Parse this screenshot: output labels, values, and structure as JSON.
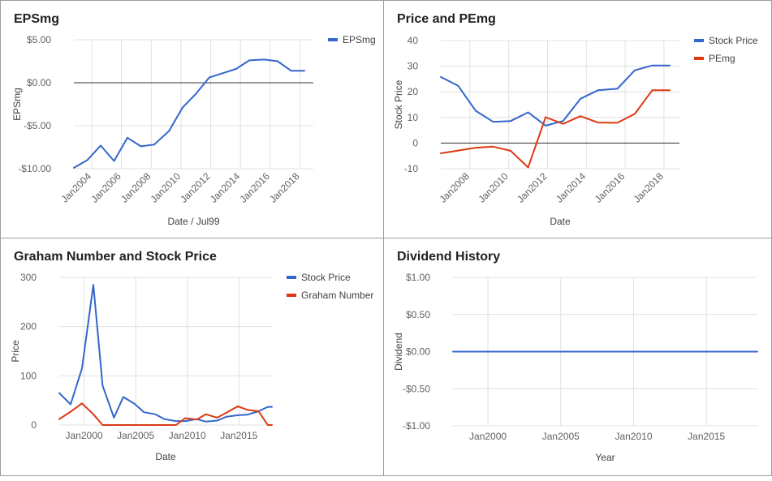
{
  "panels": [
    {
      "title": "EPSmg",
      "xlabel": "Date / Jul99",
      "ylabel": "EPSmg",
      "chart_data": {
        "type": "line",
        "title": "EPSmg",
        "xlabel": "Date / Jul99",
        "ylabel": "EPSmg",
        "ylim": [
          -10,
          5
        ],
        "xlim": [
          2002.8,
          2018.9
        ],
        "yticks": [
          5,
          0,
          -5,
          -10
        ],
        "ytick_labels": [
          "$5.00",
          "$0.00",
          "-$5.00",
          "-$10.00"
        ],
        "xticks": [
          2004,
          2006,
          2008,
          2010,
          2012,
          2014,
          2016,
          2018
        ],
        "xtick_labels": [
          "Jan2004",
          "Jan2006",
          "Jan2008",
          "Jan2010",
          "Jan2012",
          "Jan2014",
          "Jan2016",
          "Jan2018"
        ],
        "grid": true,
        "legend": "top-right",
        "baseline": 0,
        "series": [
          {
            "name": "EPSmg",
            "color": "#3366cc",
            "x": [
              2002.8,
              2003.7,
              2004.6,
              2005.5,
              2006.4,
              2007.3,
              2008.2,
              2009.2,
              2010.1,
              2011.0,
              2011.9,
              2012.8,
              2013.7,
              2014.6,
              2015.6,
              2016.5,
              2017.4,
              2018.3
            ],
            "y": [
              -9.9,
              -9.0,
              -7.3,
              -9.1,
              -6.4,
              -7.4,
              -7.2,
              -5.6,
              -2.9,
              -1.3,
              0.6,
              1.1,
              1.6,
              2.6,
              2.7,
              2.5,
              1.4,
              1.4
            ]
          }
        ]
      }
    },
    {
      "title": "Price and PEmg",
      "xlabel": "Date",
      "ylabel": "Stock Price",
      "chart_data": {
        "type": "line",
        "title": "Price and PEmg",
        "xlabel": "Date",
        "ylabel": "Stock Price",
        "ylim": [
          -10,
          40
        ],
        "xlim": [
          2006.5,
          2018.8
        ],
        "yticks": [
          40,
          30,
          20,
          10,
          0,
          -10
        ],
        "ytick_labels": [
          "40",
          "30",
          "20",
          "10",
          "0",
          "-10"
        ],
        "xticks": [
          2008,
          2010,
          2012,
          2014,
          2016,
          2018
        ],
        "xtick_labels": [
          "Jan2008",
          "Jan2010",
          "Jan2012",
          "Jan2014",
          "Jan2016",
          "Jan2018"
        ],
        "grid": true,
        "legend": "top-right",
        "baseline": 0,
        "series": [
          {
            "name": "Stock Price",
            "color": "#3366cc",
            "x": [
              2006.5,
              2007.4,
              2008.3,
              2009.2,
              2010.1,
              2011.0,
              2011.9,
              2012.8,
              2013.7,
              2014.6,
              2015.6,
              2016.5,
              2017.4,
              2018.3
            ],
            "y": [
              25.8,
              22.3,
              12.6,
              8.3,
              8.6,
              12.0,
              6.8,
              8.6,
              17.3,
              20.6,
              21.2,
              28.4,
              30.3,
              30.3
            ]
          },
          {
            "name": "PEmg",
            "color": "#dc3912",
            "x": [
              2006.5,
              2007.4,
              2008.3,
              2009.2,
              2010.1,
              2011.0,
              2011.9,
              2012.8,
              2013.7,
              2014.6,
              2015.6,
              2016.5,
              2017.4,
              2018.3
            ],
            "y": [
              -4.0,
              -2.9,
              -1.8,
              -1.4,
              -3.0,
              -9.5,
              10.1,
              7.5,
              10.5,
              8.0,
              7.9,
              11.4,
              20.6,
              20.6
            ]
          }
        ]
      }
    },
    {
      "title": "Graham Number and Stock Price",
      "xlabel": "Date",
      "ylabel": "Price",
      "chart_data": {
        "type": "line",
        "title": "Graham Number and Stock Price",
        "xlabel": "Date",
        "ylabel": "Price",
        "ylim": [
          0,
          300
        ],
        "xlim": [
          1997.6,
          2018.2
        ],
        "yticks": [
          300,
          200,
          100,
          0
        ],
        "ytick_labels": [
          "300",
          "200",
          "100",
          "0"
        ],
        "xticks": [
          2000,
          2005,
          2010,
          2015
        ],
        "xtick_labels": [
          "Jan2000",
          "Jan2005",
          "Jan2010",
          "Jan2015"
        ],
        "grid": true,
        "legend": "top-right",
        "series": [
          {
            "name": "Stock Price",
            "color": "#3366cc",
            "x": [
              1997.6,
              1998.7,
              1999.8,
              2000.9,
              2001.8,
              2002.9,
              2003.8,
              2004.9,
              2005.8,
              2006.9,
              2007.8,
              2008.9,
              2009.8,
              2010.9,
              2011.8,
              2012.9,
              2013.8,
              2014.9,
              2015.8,
              2016.9,
              2017.8,
              2018.2
            ],
            "y": [
              65,
              42,
              115,
              285,
              80,
              15,
              57,
              43,
              26,
              22,
              12,
              8,
              8,
              12,
              7,
              9,
              17,
              20,
              21,
              28,
              37,
              37
            ]
          },
          {
            "name": "Graham Number",
            "color": "#dc3912",
            "x": [
              1997.6,
              1998.7,
              1999.8,
              2000.9,
              2001.8,
              2002.9,
              2003.8,
              2004.9,
              2005.8,
              2006.9,
              2007.8,
              2008.9,
              2009.8,
              2010.9,
              2011.8,
              2012.9,
              2013.8,
              2014.9,
              2015.8,
              2016.9,
              2017.8,
              2018.2
            ],
            "y": [
              12,
              27,
              44,
              22,
              0,
              0,
              0,
              0,
              0,
              0,
              0,
              0,
              14,
              11,
              22,
              15,
              25,
              38,
              31,
              28,
              0,
              0
            ]
          }
        ]
      }
    },
    {
      "title": "Dividend History",
      "xlabel": "Year",
      "ylabel": "Dividend",
      "chart_data": {
        "type": "line",
        "title": "Dividend History",
        "xlabel": "Year",
        "ylabel": "Dividend",
        "ylim": [
          -1,
          1
        ],
        "xlim": [
          1997.6,
          2018.5
        ],
        "yticks": [
          1,
          0.5,
          0,
          -0.5,
          -1
        ],
        "ytick_labels": [
          "$1.00",
          "$0.50",
          "$0.00",
          "-$0.50",
          "-$1.00"
        ],
        "xticks": [
          2000,
          2005,
          2010,
          2015
        ],
        "xtick_labels": [
          "Jan2000",
          "Jan2005",
          "Jan2010",
          "Jan2015"
        ],
        "grid": true,
        "legend": "none",
        "series": [
          {
            "name": "",
            "color": "#3366cc",
            "x": [
              1997.6,
              2000.0,
              2005.0,
              2010.0,
              2015.0,
              2018.5
            ],
            "y": [
              0,
              0,
              0,
              0,
              0,
              0
            ]
          }
        ]
      }
    }
  ]
}
